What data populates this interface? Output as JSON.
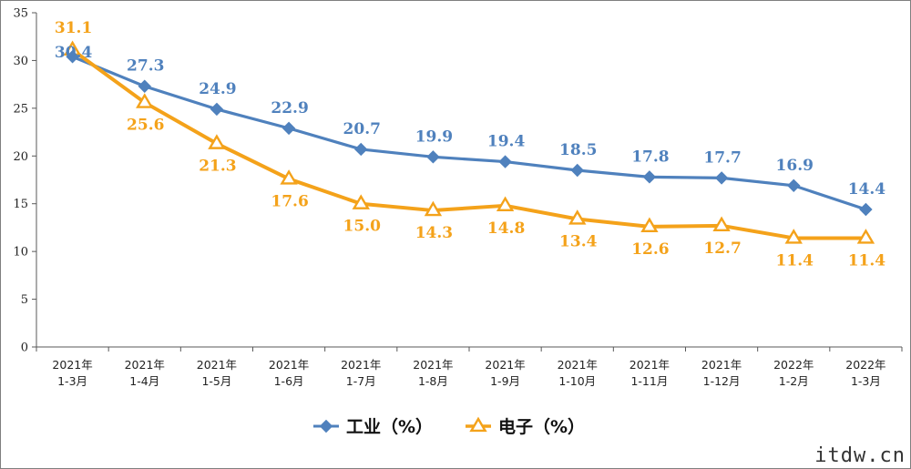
{
  "chart_data": {
    "type": "line",
    "title": "",
    "xlabel": "",
    "ylabel": "",
    "ylim": [
      0,
      35
    ],
    "yticks": [
      0,
      5,
      10,
      15,
      20,
      25,
      30,
      35
    ],
    "grid": false,
    "legend_position": "bottom",
    "categories": [
      [
        "2021年",
        "1-3月"
      ],
      [
        "2021年",
        "1-4月"
      ],
      [
        "2021年",
        "1-5月"
      ],
      [
        "2021年",
        "1-6月"
      ],
      [
        "2021年",
        "1-7月"
      ],
      [
        "2021年",
        "1-8月"
      ],
      [
        "2021年",
        "1-9月"
      ],
      [
        "2021年",
        "1-10月"
      ],
      [
        "2021年",
        "1-11月"
      ],
      [
        "2021年",
        "1-12月"
      ],
      [
        "2022年",
        "1-2月"
      ],
      [
        "2022年",
        "1-3月"
      ]
    ],
    "series": [
      {
        "name": "工业（%）",
        "marker": "diamond",
        "color": "#4f81bd",
        "values": [
          30.4,
          27.3,
          24.9,
          22.9,
          20.7,
          19.9,
          19.4,
          18.5,
          17.8,
          17.7,
          16.9,
          14.4
        ],
        "value_labels": [
          "30.4",
          "27.3",
          "24.9",
          "22.9",
          "20.7",
          "19.9",
          "19.4",
          "18.5",
          "17.8",
          "17.7",
          "16.9",
          "14.4"
        ]
      },
      {
        "name": "电子（%）",
        "marker": "triangle",
        "color": "#f4a21a",
        "values": [
          31.1,
          25.6,
          21.3,
          17.6,
          15.0,
          14.3,
          14.8,
          13.4,
          12.6,
          12.7,
          11.4,
          11.4
        ],
        "value_labels": [
          "31.1",
          "25.6",
          "21.3",
          "17.6",
          "15.0",
          "14.3",
          "14.8",
          "13.4",
          "12.6",
          "12.7",
          "11.4",
          "11.4"
        ]
      }
    ]
  },
  "watermark": "itdw.cn"
}
